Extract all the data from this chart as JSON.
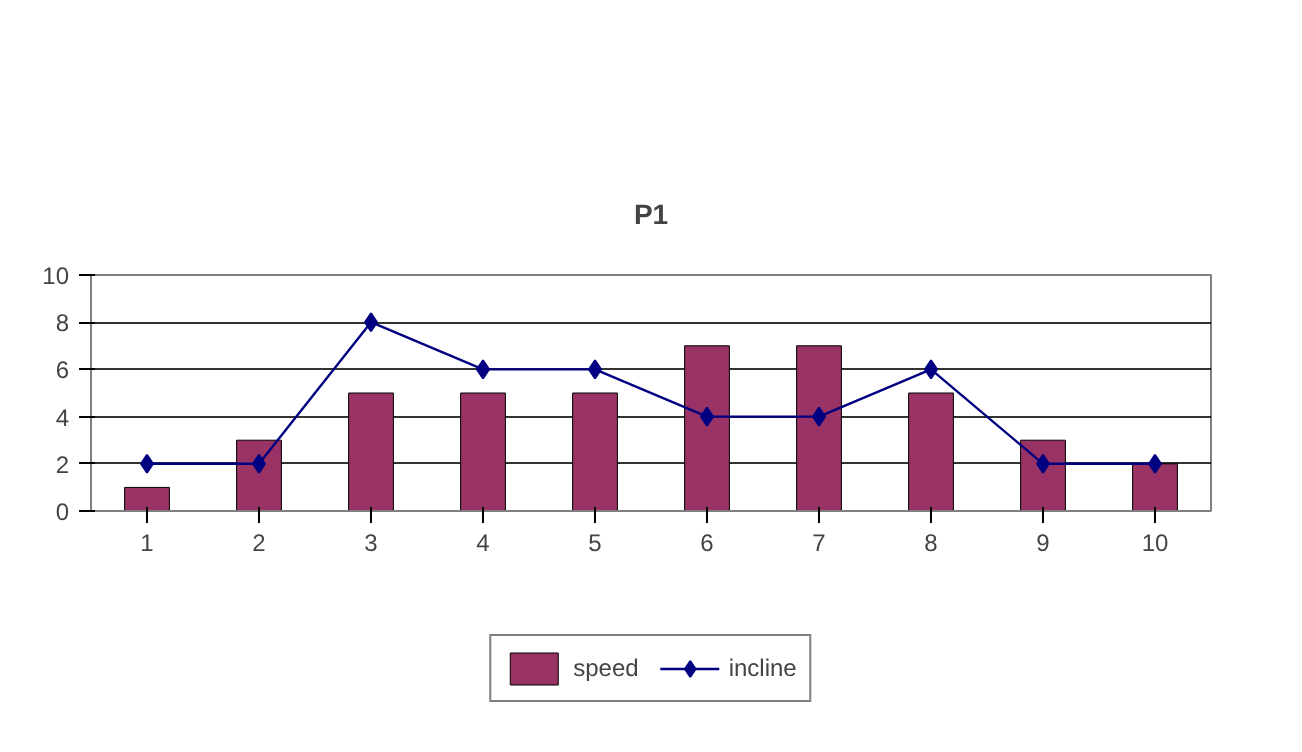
{
  "chart_data": {
    "type": "bar",
    "title": "P1",
    "categories": [
      "1",
      "2",
      "3",
      "4",
      "5",
      "6",
      "7",
      "8",
      "9",
      "10"
    ],
    "series": [
      {
        "name": "speed",
        "color": "#993366",
        "values": [
          1,
          3,
          5,
          5,
          5,
          7,
          7,
          5,
          3,
          2
        ]
      },
      {
        "name": "incline",
        "type": "line",
        "color": "#000080",
        "values": [
          2,
          2,
          8,
          6,
          6,
          4,
          4,
          6,
          2,
          2
        ]
      }
    ],
    "ylim": [
      0,
      10
    ],
    "yticks": [
      0,
      2,
      4,
      6,
      8,
      10
    ],
    "grid": "y",
    "legend": "bottom",
    "marker": "diamond",
    "line_style": "solid"
  }
}
